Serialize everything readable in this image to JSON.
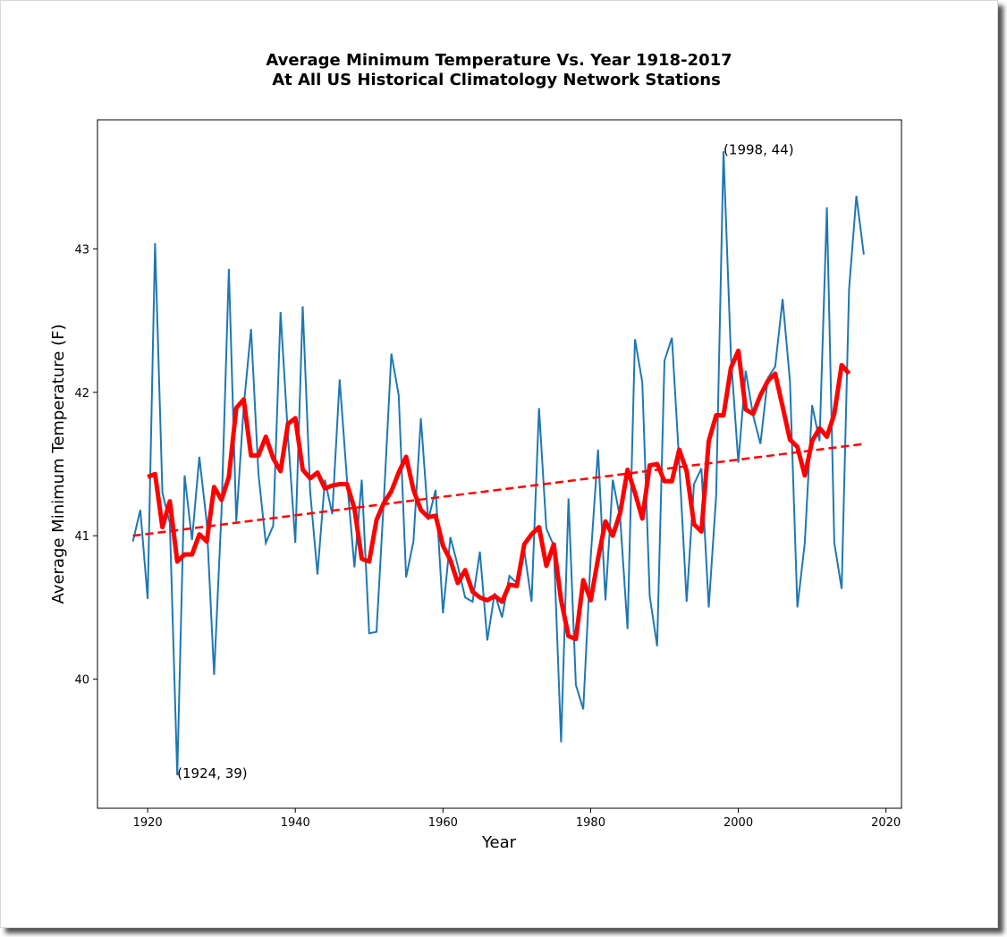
{
  "chart_data": {
    "type": "line",
    "title": "Average Minimum Temperature Vs. Year 1918-2017",
    "subtitle": "At All US Historical Climatology Network Stations",
    "xlabel": "Year",
    "ylabel": "Average Minimum Temperature (F)",
    "xlim": [
      1913.2,
      2022.1
    ],
    "ylim": [
      39.1,
      43.9
    ],
    "xticks": [
      1920,
      1940,
      1960,
      1980,
      2000,
      2020
    ],
    "yticks": [
      40,
      41,
      42,
      43
    ],
    "grid": false,
    "colors": {
      "annual": "#1f77b4",
      "smoothed": "#ff0000",
      "trend": "#ff0000"
    },
    "series": [
      {
        "style": "thin-solid",
        "x": [
          1918,
          1919,
          1920,
          1921,
          1922,
          1923,
          1924,
          1925,
          1926,
          1927,
          1928,
          1929,
          1930,
          1931,
          1932,
          1933,
          1934,
          1935,
          1936,
          1937,
          1938,
          1939,
          1940,
          1941,
          1942,
          1943,
          1944,
          1945,
          1946,
          1947,
          1948,
          1949,
          1950,
          1951,
          1952,
          1953,
          1954,
          1955,
          1956,
          1957,
          1958,
          1959,
          1960,
          1961,
          1962,
          1963,
          1964,
          1965,
          1966,
          1967,
          1968,
          1969,
          1970,
          1971,
          1972,
          1973,
          1974,
          1975,
          1976,
          1977,
          1978,
          1979,
          1980,
          1981,
          1982,
          1983,
          1984,
          1985,
          1986,
          1987,
          1988,
          1989,
          1990,
          1991,
          1992,
          1993,
          1994,
          1995,
          1996,
          1997,
          1998,
          1999,
          2000,
          2001,
          2002,
          2003,
          2004,
          2005,
          2006,
          2007,
          2008,
          2009,
          2010,
          2011,
          2012,
          2013,
          2014,
          2015,
          2016,
          2017
        ],
        "values": [
          40.96,
          41.18,
          40.56,
          43.04,
          41.3,
          41.09,
          39.33,
          41.42,
          40.97,
          41.55,
          41.09,
          40.03,
          41.17,
          42.86,
          41.1,
          41.9,
          42.44,
          41.43,
          40.95,
          41.07,
          42.56,
          41.7,
          40.95,
          42.6,
          41.31,
          40.73,
          41.39,
          41.15,
          42.09,
          41.39,
          40.78,
          41.39,
          40.32,
          40.33,
          41.26,
          42.27,
          41.98,
          40.71,
          40.96,
          41.82,
          41.11,
          41.32,
          40.46,
          40.99,
          40.79,
          40.57,
          40.54,
          40.89,
          40.27,
          40.6,
          40.43,
          40.72,
          40.67,
          40.9,
          40.54,
          41.89,
          41.05,
          40.93,
          39.56,
          41.26,
          39.96,
          39.79,
          40.85,
          41.6,
          40.55,
          41.39,
          41.12,
          40.35,
          42.37,
          42.07,
          40.58,
          40.23,
          42.22,
          42.38,
          41.51,
          40.54,
          41.36,
          41.47,
          40.5,
          41.28,
          43.68,
          42.25,
          41.51,
          42.15,
          41.84,
          41.64,
          42.1,
          42.18,
          42.65,
          42.08,
          40.5,
          40.95,
          41.91,
          41.66,
          43.29,
          40.95,
          40.63,
          42.72,
          43.37,
          42.96
        ]
      },
      {
        "style": "thick-solid",
        "x": [
          1920,
          1921,
          1922,
          1923,
          1924,
          1925,
          1926,
          1927,
          1928,
          1929,
          1930,
          1931,
          1932,
          1933,
          1934,
          1935,
          1936,
          1937,
          1938,
          1939,
          1940,
          1941,
          1942,
          1943,
          1944,
          1945,
          1946,
          1947,
          1948,
          1949,
          1950,
          1951,
          1952,
          1953,
          1954,
          1955,
          1956,
          1957,
          1958,
          1959,
          1960,
          1961,
          1962,
          1963,
          1964,
          1965,
          1966,
          1967,
          1968,
          1969,
          1970,
          1971,
          1972,
          1973,
          1974,
          1975,
          1976,
          1977,
          1978,
          1979,
          1980,
          1981,
          1982,
          1983,
          1984,
          1985,
          1986,
          1987,
          1988,
          1989,
          1990,
          1991,
          1992,
          1993,
          1994,
          1995,
          1996,
          1997,
          1998,
          1999,
          2000,
          2001,
          2002,
          2003,
          2004,
          2005,
          2006,
          2007,
          2008,
          2009,
          2010,
          2011,
          2012,
          2013,
          2014,
          2015
        ],
        "values": [
          41.41,
          41.43,
          41.06,
          41.24,
          40.82,
          40.87,
          40.87,
          41.01,
          40.96,
          41.34,
          41.25,
          41.41,
          41.89,
          41.95,
          41.56,
          41.56,
          41.69,
          41.54,
          41.45,
          41.78,
          41.82,
          41.46,
          41.4,
          41.44,
          41.33,
          41.35,
          41.36,
          41.36,
          41.19,
          40.84,
          40.82,
          41.11,
          41.23,
          41.31,
          41.44,
          41.55,
          41.32,
          41.18,
          41.13,
          41.14,
          40.93,
          40.83,
          40.67,
          40.76,
          40.61,
          40.57,
          40.55,
          40.58,
          40.54,
          40.66,
          40.65,
          40.94,
          41.01,
          41.06,
          40.79,
          40.94,
          40.55,
          40.3,
          40.28,
          40.69,
          40.55,
          40.84,
          41.1,
          41.0,
          41.16,
          41.46,
          41.3,
          41.12,
          41.49,
          41.5,
          41.38,
          41.38,
          41.6,
          41.45,
          41.08,
          41.03,
          41.66,
          41.84,
          41.84,
          42.17,
          42.29,
          41.88,
          41.85,
          41.98,
          42.08,
          42.13,
          41.9,
          41.67,
          41.62,
          41.42,
          41.66,
          41.75,
          41.69,
          41.85,
          42.19,
          42.13
        ]
      },
      {
        "style": "dashed",
        "x": [
          1918,
          2017
        ],
        "values": [
          41.0,
          41.64
        ]
      }
    ],
    "annotations": [
      {
        "text": "(1998, 44)",
        "x": 1998,
        "y": 43.68
      },
      {
        "text": "(1924, 39)",
        "x": 1924,
        "y": 39.33
      }
    ]
  }
}
